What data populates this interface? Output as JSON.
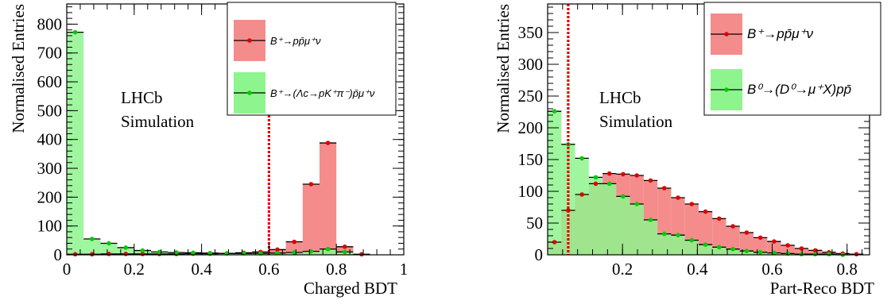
{
  "chart_data": [
    {
      "type": "bar",
      "xlabel": "Charged BDT",
      "ylabel": "Normalised Entries",
      "annotation": [
        "LHCb",
        "Simulation"
      ],
      "xlim": [
        0,
        1
      ],
      "ylim": [
        0,
        870
      ],
      "x_ticks": [
        "0",
        "0.2",
        "0.4",
        "0.6",
        "0.8",
        "1"
      ],
      "y_ticks": [
        "0",
        "100",
        "200",
        "300",
        "400",
        "500",
        "600",
        "700",
        "800"
      ],
      "cut_value": 0.6,
      "bin_width": 0.05,
      "legend_position": "top-right",
      "series": [
        {
          "name": "B⁺→pp̄μ⁺ν",
          "color": "#f58c8c",
          "marker_color": "#e00000",
          "bin_low": [
            0,
            0.05,
            0.1,
            0.15,
            0.2,
            0.25,
            0.3,
            0.35,
            0.4,
            0.45,
            0.5,
            0.55,
            0.6,
            0.65,
            0.7,
            0.75,
            0.8,
            0.85
          ],
          "values": [
            2,
            2,
            3,
            3,
            3,
            3,
            3,
            4,
            4,
            5,
            7,
            10,
            18,
            45,
            245,
            388,
            28,
            2
          ]
        },
        {
          "name": "B⁺→(Λc→pK⁺π⁻)p̄μ⁺ν",
          "color": "#8ef58e",
          "marker_color": "#00cc00",
          "bin_low": [
            0,
            0.05,
            0.1,
            0.15,
            0.2,
            0.25,
            0.3,
            0.35,
            0.4,
            0.45,
            0.5,
            0.55,
            0.6,
            0.65,
            0.7,
            0.75,
            0.8
          ],
          "values": [
            772,
            55,
            40,
            25,
            15,
            10,
            8,
            7,
            6,
            5,
            5,
            5,
            6,
            8,
            12,
            20,
            10
          ]
        }
      ]
    },
    {
      "type": "bar",
      "xlabel": "Part-Reco BDT",
      "ylabel": "Normalised Entries",
      "annotation": [
        "LHCb",
        "Simulation"
      ],
      "xlim": [
        0,
        0.86
      ],
      "ylim": [
        0,
        395
      ],
      "x_ticks": [
        "0.2",
        "0.4",
        "0.6",
        "0.8"
      ],
      "y_ticks": [
        "0",
        "50",
        "100",
        "150",
        "200",
        "250",
        "300",
        "350"
      ],
      "cut_value": 0.055,
      "bin_width": 0.0367,
      "legend_position": "top-right",
      "series": [
        {
          "name": "B⁺→pp̄μ⁺ν",
          "color": "#f58c8c",
          "marker_color": "#e00000",
          "bin_low": [
            0,
            0.0367,
            0.0733,
            0.11,
            0.1467,
            0.1833,
            0.22,
            0.2567,
            0.2933,
            0.33,
            0.3667,
            0.4033,
            0.44,
            0.4767,
            0.5133,
            0.55,
            0.5867,
            0.6233,
            0.66,
            0.6967,
            0.7333,
            0.77,
            0.8067
          ],
          "values": [
            20,
            70,
            95,
            112,
            128,
            127,
            125,
            117,
            105,
            90,
            80,
            68,
            57,
            45,
            35,
            27,
            21,
            15,
            10,
            7,
            4,
            2,
            1
          ]
        },
        {
          "name": "B⁰→(D⁰→μ⁺X)pp̄",
          "color": "#8ef58e",
          "marker_color": "#00cc00",
          "bin_low": [
            0,
            0.0367,
            0.0733,
            0.11,
            0.1467,
            0.1833,
            0.22,
            0.2567,
            0.2933,
            0.33,
            0.3667,
            0.4033,
            0.44,
            0.4767,
            0.5133,
            0.55,
            0.5867,
            0.6233,
            0.66,
            0.6967,
            0.7333,
            0.77
          ],
          "values": [
            226,
            174,
            152,
            122,
            112,
            92,
            80,
            55,
            33,
            31,
            23,
            16,
            12,
            9,
            6,
            4,
            3,
            2,
            1,
            1,
            1,
            0
          ]
        }
      ]
    }
  ]
}
